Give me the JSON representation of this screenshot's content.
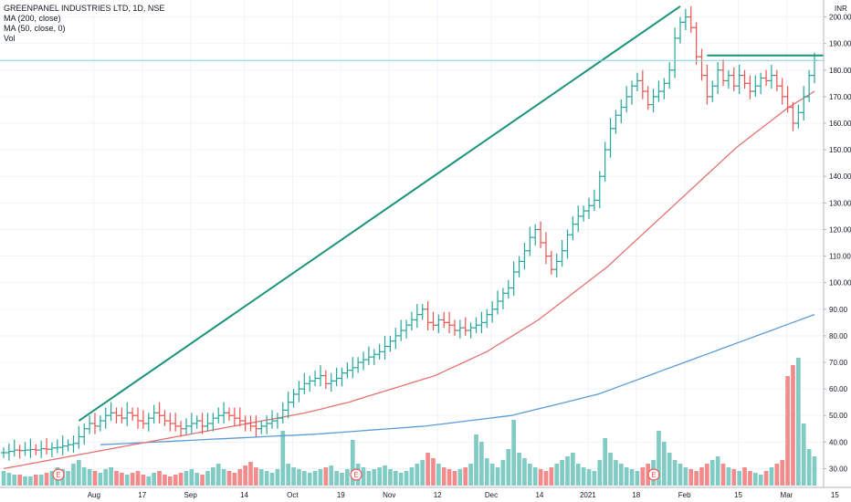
{
  "chart_data": {
    "type": "ohlc-bar",
    "title": "GREENPANEL INDUSTRIES LTD, 1D, NSE",
    "indicators": [
      "MA (200, close)",
      "MA (50, close, 0)",
      "Vol"
    ],
    "currency_label": "INR",
    "last_price_label": "183.60",
    "ylim": [
      25,
      205
    ],
    "y_ticks": [
      "30.00",
      "40.00",
      "50.00",
      "60.00",
      "70.00",
      "80.00",
      "90.00",
      "100.00",
      "110.00",
      "120.00",
      "130.00",
      "140.00",
      "150.00",
      "160.00",
      "170.00",
      "180.00",
      "190.00",
      "200.00"
    ],
    "x_ticks": [
      "Aug",
      "17",
      "Sep",
      "14",
      "Oct",
      "19",
      "Nov",
      "12",
      "Dec",
      "14",
      "2021",
      "18",
      "Feb",
      "15",
      "Mar",
      "15"
    ],
    "earnings_marker_label": "E",
    "earnings_markers_at_x_index": [
      1,
      6,
      12
    ],
    "price_bars_close": [
      36,
      36.5,
      37,
      36.8,
      37,
      37.2,
      37,
      37.5,
      37.3,
      37.8,
      38,
      38.5,
      39,
      39.5,
      42,
      45,
      47,
      46,
      48,
      50,
      51,
      50,
      49,
      51,
      50,
      48,
      47,
      49,
      51,
      50,
      48,
      47,
      46,
      45,
      46,
      47,
      48,
      46,
      47,
      49,
      50,
      51,
      50,
      49,
      48,
      47,
      46,
      45,
      46,
      47,
      48,
      49,
      52,
      55,
      58,
      60,
      62,
      63,
      64,
      65,
      62,
      63,
      64,
      66,
      67,
      68,
      70,
      71,
      72,
      73,
      74,
      76,
      78,
      80,
      82,
      84,
      86,
      88,
      90,
      85,
      84,
      86,
      85,
      84,
      82,
      83,
      82,
      83,
      84,
      85,
      88,
      90,
      93,
      96,
      98,
      104,
      108,
      112,
      117,
      120,
      115,
      110,
      105,
      108,
      112,
      118,
      122,
      125,
      127,
      129,
      131,
      140,
      150,
      158,
      163,
      166,
      170,
      174,
      176,
      172,
      167,
      170,
      172,
      175,
      180,
      192,
      198,
      200,
      196,
      185,
      178,
      170,
      174,
      180,
      176,
      178,
      174,
      178,
      175,
      172,
      174,
      177,
      176,
      178,
      174,
      170,
      166,
      160,
      164,
      170,
      178,
      183.6
    ],
    "volumes": [
      8,
      7,
      6,
      6,
      5,
      5,
      6,
      6,
      7,
      8,
      10,
      9,
      8,
      12,
      14,
      10,
      9,
      8,
      7,
      9,
      10,
      8,
      7,
      6,
      7,
      8,
      6,
      5,
      7,
      8,
      6,
      5,
      6,
      7,
      8,
      9,
      7,
      6,
      8,
      10,
      12,
      9,
      8,
      7,
      9,
      11,
      13,
      10,
      9,
      8,
      7,
      9,
      30,
      12,
      10,
      9,
      8,
      7,
      8,
      9,
      10,
      11,
      8,
      7,
      9,
      25,
      12,
      10,
      8,
      9,
      10,
      11,
      9,
      8,
      7,
      8,
      10,
      12,
      14,
      18,
      15,
      12,
      10,
      9,
      8,
      9,
      10,
      12,
      28,
      24,
      15,
      12,
      10,
      14,
      20,
      36,
      18,
      15,
      12,
      10,
      9,
      8,
      10,
      12,
      14,
      16,
      18,
      12,
      10,
      9,
      8,
      14,
      26,
      18,
      14,
      12,
      10,
      9,
      8,
      10,
      12,
      14,
      30,
      24,
      18,
      14,
      12,
      10,
      9,
      8,
      10,
      12,
      14,
      16,
      12,
      10,
      9,
      8,
      10,
      8,
      7,
      6,
      8,
      10,
      12,
      14,
      60,
      66,
      70,
      34,
      20,
      16
    ],
    "ma50": [
      30,
      30.6,
      31.2,
      31.8,
      32.4,
      33,
      33.6,
      34.2,
      34.8,
      35.4,
      36,
      36.6,
      37.2,
      37.8,
      38.4,
      39,
      39.6,
      40.2,
      40.8,
      41.4,
      42,
      42.6,
      43.2,
      43.8,
      44.4,
      45,
      45.6,
      46.2,
      46.8,
      47.4,
      48,
      48.6,
      49.2,
      49.8,
      50.4,
      51,
      51.8,
      52.6,
      53.4,
      54.2,
      55,
      56,
      57,
      58,
      59,
      60,
      61,
      62,
      63,
      64,
      65,
      66.5,
      68,
      69.5,
      71,
      72.5,
      74,
      76,
      78,
      80,
      82,
      84,
      86,
      88.5,
      91,
      93.5,
      96,
      98.5,
      101,
      103.5,
      106,
      109,
      112,
      115,
      118,
      121,
      124,
      127,
      130,
      133,
      136,
      139,
      142,
      145,
      148,
      151,
      153.5,
      156,
      158.5,
      161,
      163.5,
      166,
      168,
      170,
      172
    ],
    "ma200": [
      39,
      39.2,
      39.4,
      39.6,
      39.8,
      40,
      40.2,
      40.4,
      40.6,
      40.8,
      41,
      41.2,
      41.4,
      41.6,
      41.8,
      42,
      42.2,
      42.4,
      42.6,
      42.8,
      43,
      43.3,
      43.6,
      43.9,
      44.2,
      44.5,
      44.8,
      45.1,
      45.4,
      45.7,
      46,
      46.5,
      47,
      47.5,
      48,
      48.5,
      49,
      49.5,
      50,
      51,
      52,
      53,
      54,
      55,
      56,
      57,
      58,
      59.5,
      61,
      62.5,
      64,
      65.5,
      67,
      68.5,
      70,
      71.5,
      73,
      74.5,
      76,
      77.5,
      79,
      80.5,
      82,
      83.5,
      85,
      86.5,
      88
    ],
    "trendlines": [
      {
        "x": [
          0.0,
          1.0
        ],
        "y": [
          48,
          204
        ]
      },
      {
        "x": [
          0.0,
          1.0
        ],
        "y": [
          185.5,
          185.5
        ]
      }
    ],
    "horizontal_ref": 183.6,
    "grid": true,
    "colors": {
      "up": "#26a69a",
      "down": "#ef5350",
      "ma50": "#e57373",
      "ma200": "#5b9bd5",
      "trend": "#1a9479",
      "ref": "#7fd4e0",
      "vol_up": "#80cbc4",
      "vol_down": "#f28b8b"
    }
  }
}
